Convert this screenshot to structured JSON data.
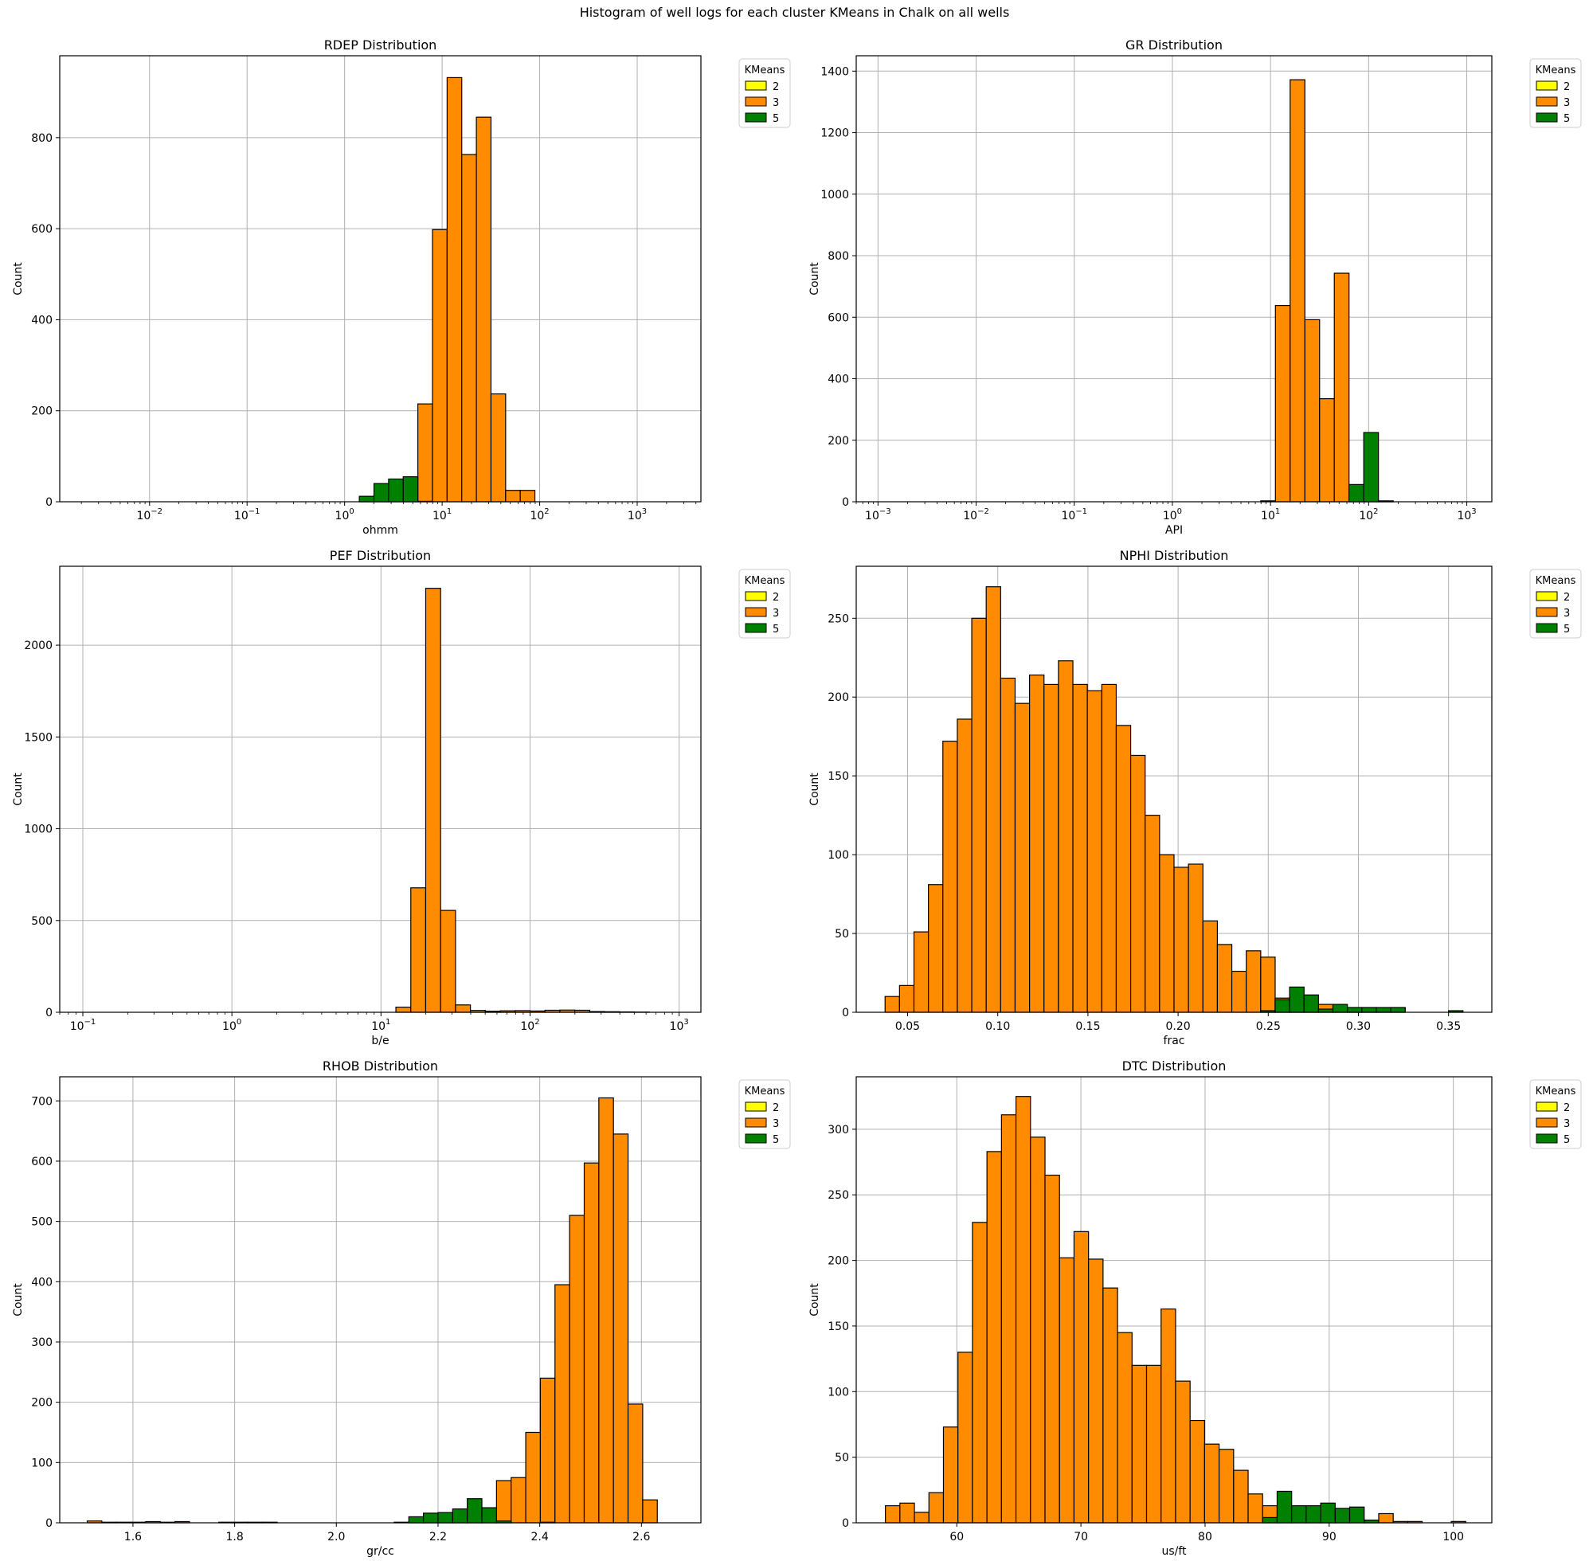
{
  "suptitle": "Histogram of well logs for each cluster KMeans in Chalk on all wells",
  "colors": {
    "2": "#ffff00",
    "3": "#ff8c00",
    "5": "#008000",
    "edge": "#000000",
    "grid": "#b0b0b0"
  },
  "legend_title": "KMeans",
  "legend_labels": [
    "2",
    "3",
    "5"
  ],
  "chart_data": [
    {
      "type": "bar",
      "title": "RDEP Distribution",
      "xlabel": "ohmm",
      "ylabel": "Count",
      "xscale": "log",
      "xlim": [
        0.0012,
        4500
      ],
      "ylim": [
        0,
        980
      ],
      "xticks": [
        {
          "v": 0.01,
          "base": "10",
          "exp": "−2"
        },
        {
          "v": 0.1,
          "base": "10",
          "exp": "−1"
        },
        {
          "v": 1,
          "base": "10",
          "exp": "0"
        },
        {
          "v": 10,
          "base": "10",
          "exp": "1"
        },
        {
          "v": 100,
          "base": "10",
          "exp": "2"
        },
        {
          "v": 1000,
          "base": "10",
          "exp": "3"
        }
      ],
      "yticks": [
        0,
        200,
        400,
        600,
        800
      ],
      "bins": [
        0.002,
        2000
      ],
      "nbins": 40,
      "legend_position": "outside top-right",
      "series": [
        {
          "cluster": "2",
          "counts": []
        },
        {
          "cluster": "3",
          "counts": [
            {
              "i": 19,
              "v": 3
            },
            {
              "i": 20,
              "v": 18
            },
            {
              "i": 21,
              "v": 20
            },
            {
              "i": 22,
              "v": 50
            },
            {
              "i": 23,
              "v": 215
            },
            {
              "i": 24,
              "v": 598
            },
            {
              "i": 25,
              "v": 932
            },
            {
              "i": 26,
              "v": 763
            },
            {
              "i": 27,
              "v": 845
            },
            {
              "i": 28,
              "v": 237
            },
            {
              "i": 29,
              "v": 25
            },
            {
              "i": 30,
              "v": 25
            }
          ]
        },
        {
          "cluster": "5",
          "counts": [
            {
              "i": 19,
              "v": 12
            },
            {
              "i": 20,
              "v": 40
            },
            {
              "i": 21,
              "v": 50
            },
            {
              "i": 22,
              "v": 55
            },
            {
              "i": 23,
              "v": 1
            }
          ]
        }
      ]
    },
    {
      "type": "bar",
      "title": "GR Distribution",
      "xlabel": "API",
      "ylabel": "Count",
      "xscale": "log",
      "xlim": [
        0.0006,
        1800
      ],
      "ylim": [
        0,
        1450
      ],
      "xticks": [
        {
          "v": 0.001,
          "base": "10",
          "exp": "−3"
        },
        {
          "v": 0.01,
          "base": "10",
          "exp": "−2"
        },
        {
          "v": 0.1,
          "base": "10",
          "exp": "−1"
        },
        {
          "v": 1,
          "base": "10",
          "exp": "0"
        },
        {
          "v": 10,
          "base": "10",
          "exp": "1"
        },
        {
          "v": 100,
          "base": "10",
          "exp": "2"
        },
        {
          "v": 1000,
          "base": "10",
          "exp": "3"
        }
      ],
      "yticks": [
        0,
        200,
        400,
        600,
        800,
        1000,
        1200,
        1400
      ],
      "bins": [
        0.001,
        1000
      ],
      "nbins": 40,
      "legend_position": "outside top-right",
      "series": [
        {
          "cluster": "2",
          "counts": []
        },
        {
          "cluster": "3",
          "counts": [
            {
              "i": 26,
              "v": 3
            },
            {
              "i": 27,
              "v": 638
            },
            {
              "i": 28,
              "v": 1372
            },
            {
              "i": 29,
              "v": 592
            },
            {
              "i": 30,
              "v": 335
            },
            {
              "i": 31,
              "v": 743
            },
            {
              "i": 32,
              "v": 22
            },
            {
              "i": 33,
              "v": 3
            },
            {
              "i": 34,
              "v": 2
            }
          ]
        },
        {
          "cluster": "5",
          "counts": [
            {
              "i": 32,
              "v": 56
            },
            {
              "i": 33,
              "v": 225
            },
            {
              "i": 34,
              "v": 3
            }
          ]
        }
      ]
    },
    {
      "type": "bar",
      "title": "PEF Distribution",
      "xlabel": "b/e",
      "ylabel": "Count",
      "xscale": "log",
      "xlim": [
        0.07,
        1400
      ],
      "ylim": [
        0,
        2430
      ],
      "xticks": [
        {
          "v": 0.1,
          "base": "10",
          "exp": "−1"
        },
        {
          "v": 1,
          "base": "10",
          "exp": "0"
        },
        {
          "v": 10,
          "base": "10",
          "exp": "1"
        },
        {
          "v": 100,
          "base": "10",
          "exp": "2"
        },
        {
          "v": 1000,
          "base": "10",
          "exp": "3"
        }
      ],
      "yticks": [
        0,
        500,
        1000,
        1500,
        2000
      ],
      "bins": [
        0.1,
        1000
      ],
      "nbins": 40,
      "legend_position": "outside top-right",
      "series": [
        {
          "cluster": "2",
          "counts": []
        },
        {
          "cluster": "3",
          "counts": [
            {
              "i": 21,
              "v": 28
            },
            {
              "i": 22,
              "v": 678
            },
            {
              "i": 23,
              "v": 2310
            },
            {
              "i": 24,
              "v": 555
            },
            {
              "i": 25,
              "v": 40
            },
            {
              "i": 26,
              "v": 10
            },
            {
              "i": 27,
              "v": 6
            },
            {
              "i": 28,
              "v": 8
            },
            {
              "i": 29,
              "v": 9
            },
            {
              "i": 30,
              "v": 7
            },
            {
              "i": 31,
              "v": 11
            },
            {
              "i": 32,
              "v": 12
            },
            {
              "i": 33,
              "v": 11
            },
            {
              "i": 34,
              "v": 4
            },
            {
              "i": 35,
              "v": 3
            },
            {
              "i": 36,
              "v": 2
            },
            {
              "i": 37,
              "v": 1
            }
          ]
        },
        {
          "cluster": "5",
          "counts": []
        }
      ]
    },
    {
      "type": "bar",
      "title": "NPHI Distribution",
      "xlabel": "frac",
      "ylabel": "Count",
      "xscale": "linear",
      "xlim": [
        0.0215,
        0.374
      ],
      "ylim": [
        0,
        283
      ],
      "xticks": [
        {
          "v": 0.05,
          "label": "0.05"
        },
        {
          "v": 0.1,
          "label": "0.10"
        },
        {
          "v": 0.15,
          "label": "0.15"
        },
        {
          "v": 0.2,
          "label": "0.20"
        },
        {
          "v": 0.25,
          "label": "0.25"
        },
        {
          "v": 0.3,
          "label": "0.30"
        },
        {
          "v": 0.35,
          "label": "0.35"
        }
      ],
      "yticks": [
        0,
        50,
        100,
        150,
        200,
        250
      ],
      "bins": [
        0.0375,
        0.358
      ],
      "nbins": 40,
      "legend_position": "outside top-right",
      "series": [
        {
          "cluster": "2",
          "counts": []
        },
        {
          "cluster": "3",
          "counts": [
            10,
            17,
            51,
            81,
            172,
            186,
            250,
            270,
            212,
            196,
            214,
            208,
            223,
            208,
            204,
            208,
            182,
            163,
            125,
            100,
            92,
            94,
            58,
            43,
            26,
            39,
            35,
            9,
            8,
            3,
            5,
            3,
            3,
            3,
            2,
            3,
            0,
            0,
            0,
            0
          ]
        },
        {
          "cluster": "5",
          "counts": [
            0,
            0,
            0,
            0,
            0,
            0,
            0,
            0,
            0,
            0,
            0,
            0,
            0,
            0,
            0,
            0,
            0,
            0,
            0,
            0,
            0,
            0,
            0,
            0,
            0,
            0,
            1,
            8,
            16,
            11,
            2,
            5,
            3,
            3,
            3,
            3,
            0,
            0,
            0,
            1
          ]
        }
      ]
    },
    {
      "type": "bar",
      "title": "RHOB Distribution",
      "xlabel": "gr/cc",
      "ylabel": "Count",
      "xscale": "linear",
      "xlim": [
        1.456,
        2.717
      ],
      "ylim": [
        0,
        740
      ],
      "xticks": [
        {
          "v": 1.6,
          "label": "1.6"
        },
        {
          "v": 1.8,
          "label": "1.8"
        },
        {
          "v": 2.0,
          "label": "2.0"
        },
        {
          "v": 2.2,
          "label": "2.2"
        },
        {
          "v": 2.4,
          "label": "2.4"
        },
        {
          "v": 2.6,
          "label": "2.6"
        }
      ],
      "yticks": [
        0,
        100,
        200,
        300,
        400,
        500,
        600,
        700
      ],
      "bins": [
        1.51,
        2.66
      ],
      "nbins": 40,
      "legend_position": "outside top-right",
      "series": [
        {
          "cluster": "2",
          "counts": []
        },
        {
          "cluster": "3",
          "counts": [
            3,
            1,
            1,
            1,
            2,
            1,
            2,
            0,
            0,
            1,
            1,
            1,
            1,
            0,
            0,
            0,
            0,
            0,
            0,
            0,
            0,
            0,
            1,
            4,
            3,
            3,
            7,
            25,
            70,
            75,
            150,
            240,
            395,
            510,
            597,
            705,
            645,
            197,
            38,
            0
          ]
        },
        {
          "cluster": "5",
          "counts": [
            0,
            0,
            0,
            0,
            0,
            0,
            0,
            0,
            0,
            0,
            0,
            0,
            0,
            0,
            0,
            0,
            0,
            0,
            0,
            0,
            0,
            1,
            10,
            16,
            17,
            23,
            40,
            25,
            3,
            0,
            0,
            1,
            0,
            0,
            0,
            0,
            0,
            0,
            0,
            0
          ]
        }
      ]
    },
    {
      "type": "bar",
      "title": "DTC Distribution",
      "xlabel": "us/ft",
      "ylabel": "Count",
      "xscale": "linear",
      "xlim": [
        51.9,
        103.1
      ],
      "ylim": [
        0,
        340
      ],
      "xticks": [
        {
          "v": 60,
          "label": "60"
        },
        {
          "v": 70,
          "label": "70"
        },
        {
          "v": 80,
          "label": "80"
        },
        {
          "v": 90,
          "label": "90"
        },
        {
          "v": 100,
          "label": "100"
        }
      ],
      "yticks": [
        0,
        50,
        100,
        150,
        200,
        250,
        300
      ],
      "bins": [
        54.25,
        101
      ],
      "nbins": 40,
      "legend_position": "outside top-right",
      "series": [
        {
          "cluster": "2",
          "counts": []
        },
        {
          "cluster": "3",
          "counts": [
            13,
            15,
            8,
            23,
            73,
            130,
            229,
            283,
            311,
            325,
            294,
            265,
            202,
            222,
            201,
            179,
            145,
            120,
            120,
            163,
            108,
            78,
            60,
            56,
            40,
            22,
            13,
            4,
            1,
            2,
            1,
            2,
            1,
            2,
            7,
            1,
            1,
            0,
            0,
            1
          ]
        },
        {
          "cluster": "5",
          "counts": [
            0,
            0,
            0,
            0,
            0,
            0,
            0,
            0,
            0,
            0,
            0,
            0,
            0,
            0,
            0,
            0,
            0,
            0,
            0,
            0,
            0,
            0,
            0,
            0,
            0,
            0,
            4,
            24,
            13,
            13,
            15,
            11,
            12,
            2,
            0,
            0,
            0,
            0,
            0,
            0
          ]
        }
      ]
    }
  ]
}
